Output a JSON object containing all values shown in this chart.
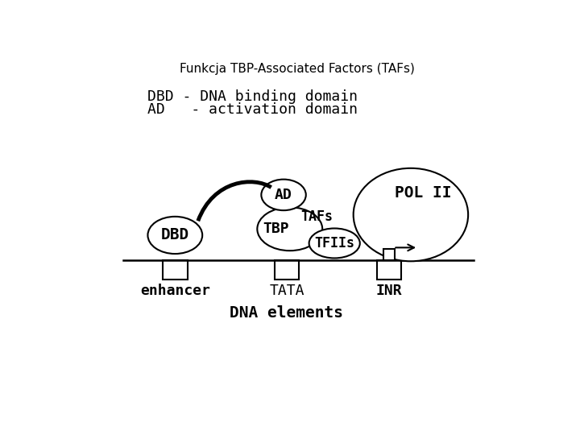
{
  "title": "Funkcja TBP-Associated Factors (TAFs)",
  "legend_line1": "DBD - DNA binding domain",
  "legend_line2": "AD   - activation domain",
  "label_enhancer": "enhancer",
  "label_tata": "TATA",
  "label_inr": "INR",
  "label_dna_elements": "DNA elements",
  "label_dbd": "DBD",
  "label_ad": "AD",
  "label_tbp": "TBP",
  "label_tafs": "TAFs",
  "label_tfiis": "TFIIs",
  "label_pol2": "POL II",
  "bg_color": "#ffffff",
  "line_color": "#000000",
  "ellipse_fill": "#ffffff",
  "box_fill": "#ffffff"
}
